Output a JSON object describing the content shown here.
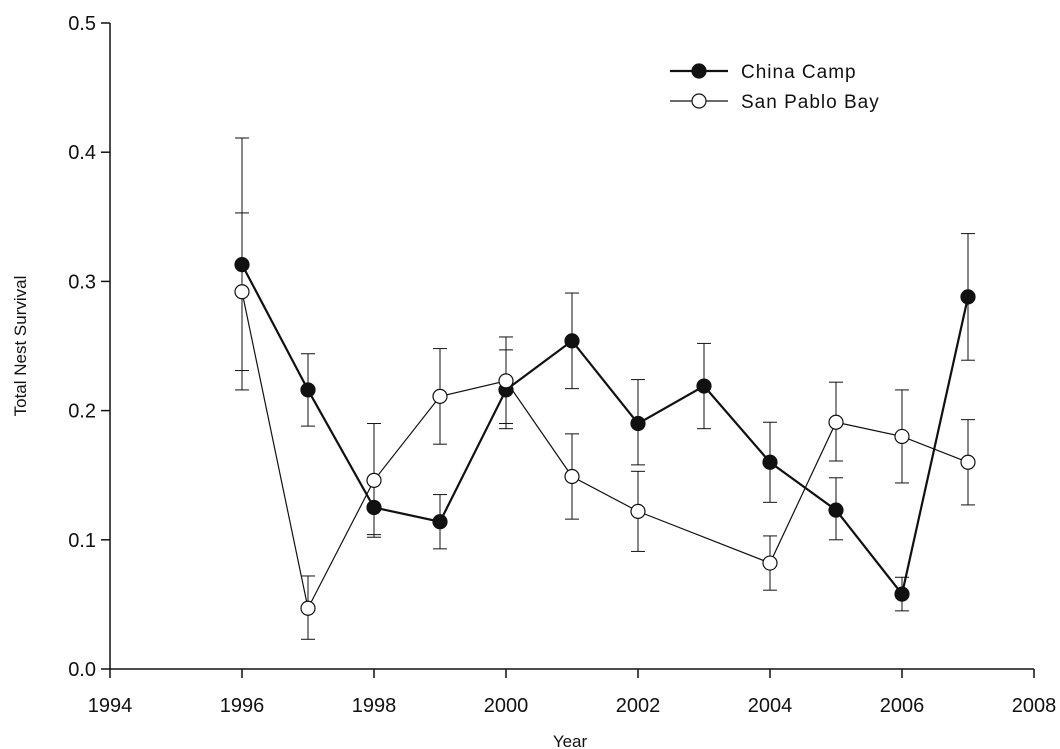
{
  "chart_data": {
    "type": "line",
    "title": "",
    "xlabel": "Year",
    "ylabel": "Total Nest Survival",
    "xlim": [
      1994,
      2008
    ],
    "ylim": [
      0.0,
      0.5
    ],
    "xticks": [
      1994,
      1996,
      1998,
      2000,
      2002,
      2004,
      2006,
      2008
    ],
    "yticks": [
      0.0,
      0.1,
      0.2,
      0.3,
      0.4,
      0.5
    ],
    "xtick_labels": [
      "1994",
      "1996",
      "1998",
      "2000",
      "2002",
      "2004",
      "2006",
      "2008"
    ],
    "ytick_labels": [
      "0.0",
      "0.1",
      "0.2",
      "0.3",
      "0.4",
      "0.5"
    ],
    "grid": false,
    "legend_position": "top-right",
    "series": [
      {
        "name": "China Camp",
        "marker": "filled-circle",
        "color": "#111111",
        "line_width": "thick",
        "points": [
          {
            "x": 1996,
            "y": 0.313,
            "lo": 0.216,
            "hi": 0.411
          },
          {
            "x": 1997,
            "y": 0.216,
            "lo": 0.188,
            "hi": 0.244
          },
          {
            "x": 1998,
            "y": 0.125,
            "lo": 0.104,
            "hi": 0.146
          },
          {
            "x": 1999,
            "y": 0.114,
            "lo": 0.093,
            "hi": 0.135
          },
          {
            "x": 2000,
            "y": 0.216,
            "lo": 0.186,
            "hi": 0.247
          },
          {
            "x": 2001,
            "y": 0.254,
            "lo": 0.217,
            "hi": 0.291
          },
          {
            "x": 2002,
            "y": 0.19,
            "lo": 0.158,
            "hi": 0.224
          },
          {
            "x": 2003,
            "y": 0.219,
            "lo": 0.186,
            "hi": 0.252
          },
          {
            "x": 2004,
            "y": 0.16,
            "lo": 0.129,
            "hi": 0.191
          },
          {
            "x": 2005,
            "y": 0.123,
            "lo": 0.1,
            "hi": 0.148
          },
          {
            "x": 2006,
            "y": 0.058,
            "lo": 0.045,
            "hi": 0.071
          },
          {
            "x": 2007,
            "y": 0.288,
            "lo": 0.239,
            "hi": 0.337
          }
        ]
      },
      {
        "name": "San Pablo Bay",
        "marker": "open-circle",
        "color": "#111111",
        "line_width": "thin",
        "points": [
          {
            "x": 1996,
            "y": 0.292,
            "lo": 0.231,
            "hi": 0.353
          },
          {
            "x": 1997,
            "y": 0.047,
            "lo": 0.023,
            "hi": 0.072
          },
          {
            "x": 1998,
            "y": 0.146,
            "lo": 0.102,
            "hi": 0.19
          },
          {
            "x": 1999,
            "y": 0.211,
            "lo": 0.174,
            "hi": 0.248
          },
          {
            "x": 2000,
            "y": 0.223,
            "lo": 0.19,
            "hi": 0.257
          },
          {
            "x": 2001,
            "y": 0.149,
            "lo": 0.116,
            "hi": 0.182
          },
          {
            "x": 2002,
            "y": 0.122,
            "lo": 0.091,
            "hi": 0.153
          },
          {
            "x": 2004,
            "y": 0.082,
            "lo": 0.061,
            "hi": 0.103
          },
          {
            "x": 2005,
            "y": 0.191,
            "lo": 0.161,
            "hi": 0.222
          },
          {
            "x": 2006,
            "y": 0.18,
            "lo": 0.144,
            "hi": 0.216
          },
          {
            "x": 2007,
            "y": 0.16,
            "lo": 0.127,
            "hi": 0.193
          }
        ]
      }
    ]
  }
}
